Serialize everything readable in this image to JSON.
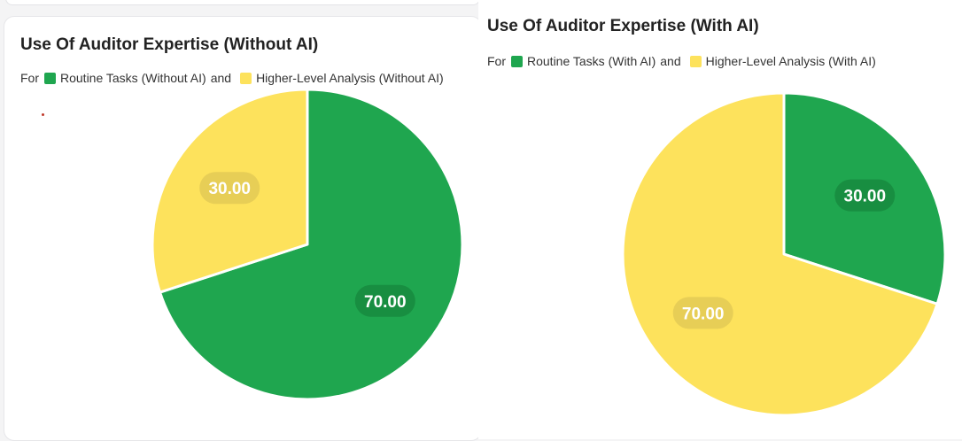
{
  "chart_data": [
    {
      "type": "pie",
      "title": "Use Of Auditor Expertise (Without AI)",
      "legend_prefix": "For",
      "legend_joiner": "and",
      "legend_placement": "top-left",
      "slices": [
        {
          "name": "Routine Tasks (Without AI)",
          "value": 70.0,
          "label": "70.00",
          "color": "#1fa64f"
        },
        {
          "name": "Higher-Level Analysis (Without AI)",
          "value": 30.0,
          "label": "30.00",
          "color": "#fde25c"
        }
      ]
    },
    {
      "type": "pie",
      "title": "Use Of Auditor Expertise (With AI)",
      "legend_prefix": "For",
      "legend_joiner": "and",
      "legend_placement": "top-left",
      "slices": [
        {
          "name": "Routine Tasks (With AI)",
          "value": 30.0,
          "label": "30.00",
          "color": "#1fa64f"
        },
        {
          "name": "Higher-Level Analysis (With AI)",
          "value": 70.0,
          "label": "70.00",
          "color": "#fde25c"
        }
      ]
    }
  ]
}
